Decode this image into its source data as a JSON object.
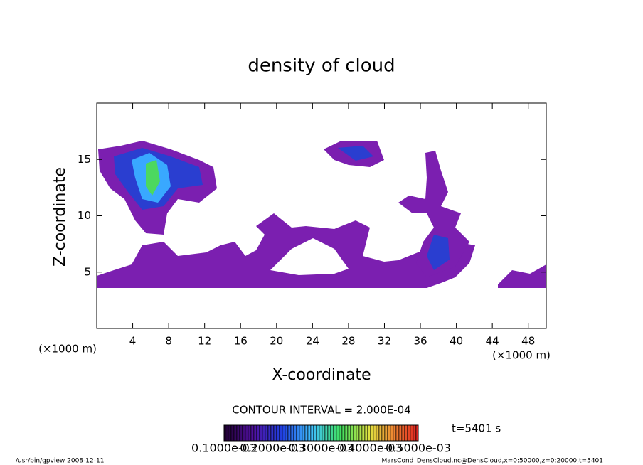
{
  "chart_data": {
    "type": "contour",
    "title": "density of cloud",
    "x_label": "X-coordinate",
    "y_label": "Z-coordinate",
    "x_unit": "(×1000 m)",
    "xlim": [
      0,
      50
    ],
    "ylim": [
      0,
      20
    ],
    "xticks": [
      4,
      8,
      12,
      16,
      20,
      24,
      28,
      32,
      36,
      40,
      44,
      48
    ],
    "yticks": [
      5,
      10,
      15
    ],
    "contour_interval": "CONTOUR INTERVAL = 2.000E-04",
    "time": "t=5401 s",
    "colorbar": {
      "clim": [
        0.0001,
        0.0005
      ],
      "ticks": [
        {
          "value": 0.0001,
          "label": "0.1000e-03"
        },
        {
          "value": 0.0002,
          "label": "0.2000e-03"
        },
        {
          "value": 0.0003,
          "label": "0.3000e-03"
        },
        {
          "value": 0.0004,
          "label": "0.4000e-03"
        },
        {
          "value": 0.0005,
          "label": "0.5000e-03"
        }
      ]
    },
    "footer_left": "/usr/bin/gpview  2008-12-11",
    "footer_right": "MarsCond_DensCloud.nc@DensCloud,x=0:50000,z=0:20000,t=5401"
  }
}
